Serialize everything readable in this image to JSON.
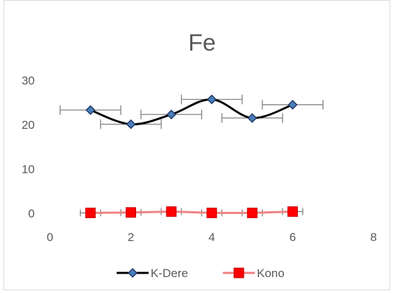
{
  "chart_data": {
    "type": "scatter",
    "title": "Fe",
    "xlabel": "",
    "ylabel": "",
    "xlim": [
      0,
      8
    ],
    "ylim": [
      0,
      30
    ],
    "x_ticks": [
      "0",
      "2",
      "4",
      "6",
      "8"
    ],
    "y_ticks": [
      "0",
      "10",
      "20",
      "30"
    ],
    "grid": false,
    "legend_position": "bottom",
    "series": [
      {
        "name": "K-Dere",
        "color": "#000000",
        "marker": "diamond",
        "marker_color": "#4a7ebb",
        "smooth": true,
        "x": [
          1,
          2,
          3,
          4,
          5,
          6
        ],
        "y": [
          23.3,
          20.1,
          22.3,
          25.7,
          21.5,
          24.5
        ],
        "x_error": 0.75
      },
      {
        "name": "Kono",
        "color": "#f08080",
        "marker": "square",
        "marker_color": "#ff0000",
        "smooth": false,
        "x": [
          1,
          2,
          3,
          4,
          5,
          6
        ],
        "y": [
          0.1,
          0.2,
          0.4,
          0.1,
          0.1,
          0.4
        ],
        "x_error": 0.25
      }
    ]
  }
}
